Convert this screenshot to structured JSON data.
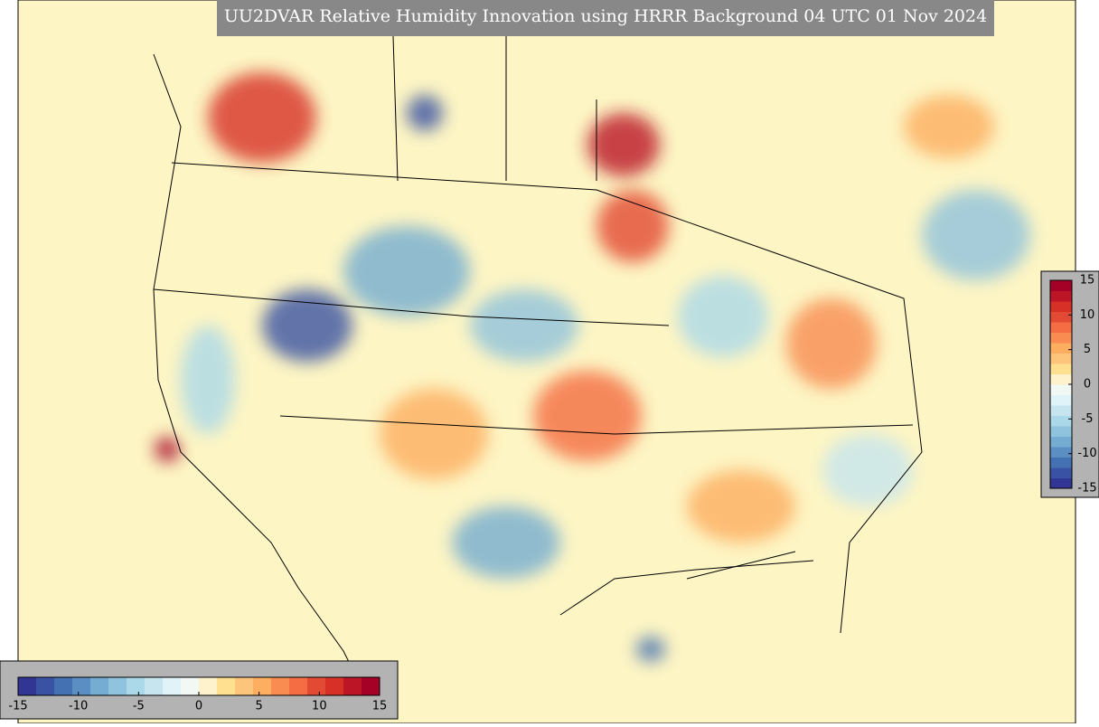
{
  "title": "UU2DVAR Relative Humidity Innovation using HRRR Background 04 UTC 01 Nov 2024",
  "colorbar": {
    "lim": [
      -15,
      15
    ],
    "ticks": [
      -15,
      -10,
      -5,
      0,
      5,
      10,
      15
    ],
    "colors": [
      "#313695",
      "#3a52a3",
      "#4471b2",
      "#5b8fc3",
      "#74add1",
      "#90c3dd",
      "#abd9e9",
      "#c6e5ef",
      "#e0f3f8",
      "#f2f9f4",
      "#fef2cc",
      "#fee090",
      "#fdc57c",
      "#fdae61",
      "#f88c51",
      "#f46d43",
      "#e34a33",
      "#d73027",
      "#bb1526",
      "#a50026"
    ]
  },
  "colorbar_right": {
    "ticks": [
      15,
      10,
      5,
      0,
      -5,
      -10,
      -15
    ]
  }
}
